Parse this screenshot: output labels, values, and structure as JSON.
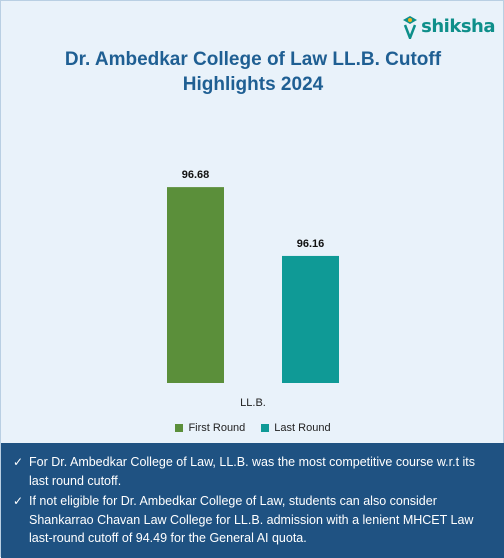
{
  "brand": {
    "name": "shiksha",
    "colors": {
      "teal": "#0e8f8a",
      "green": "#f2b21a"
    }
  },
  "title_lines": [
    "Dr. Ambedkar College of Law LL.B. Cutoff",
    "Highlights 2024"
  ],
  "chart_data": {
    "type": "bar",
    "title": "Dr. Ambedkar College of Law LL.B. Cutoff Highlights 2024",
    "categories": [
      "LL.B."
    ],
    "series": [
      {
        "name": "First Round",
        "values": [
          96.68
        ],
        "color": "#5b8f3a"
      },
      {
        "name": "Last Round",
        "values": [
          96.16
        ],
        "color": "#0f9a96"
      }
    ],
    "data_labels": [
      "96.68",
      "96.16"
    ],
    "ylim": [
      95.2,
      96.9
    ],
    "grid": false,
    "legend_position": "bottom"
  },
  "notes": [
    "For Dr. Ambedkar College of Law, LL.B. was the most competitive course w.r.t its last round cutoff.",
    "If not eligible for Dr. Ambedkar College of Law, students can also consider Shankarrao Chavan Law College for LL.B. admission with a lenient MHCET Law last-round cutoff of 94.49 for the General AI quota."
  ],
  "check_glyph": "✓"
}
